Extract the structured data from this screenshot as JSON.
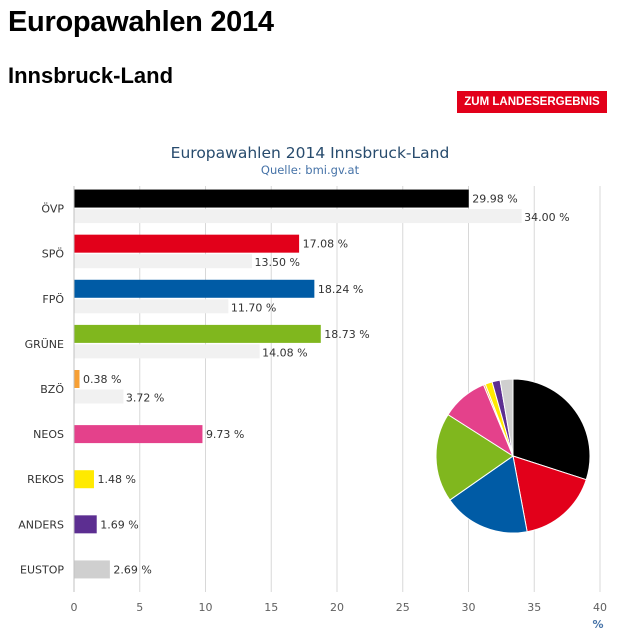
{
  "page": {
    "title": "Europawahlen 2014",
    "subtitle": "Innsbruck-Land",
    "button_label": "ZUM LANDESERGEBNIS"
  },
  "chart_data": {
    "type": "bar",
    "orientation": "horizontal",
    "title": "Europawahlen 2014 Innsbruck-Land",
    "subtitle": "Quelle: bmi.gv.at",
    "xlabel": "%",
    "xlim": [
      0,
      40
    ],
    "xticks": [
      "0",
      "5",
      "10",
      "15",
      "20",
      "25",
      "30",
      "35",
      "40"
    ],
    "grid": true,
    "value_suffix": " %",
    "categories": [
      "ÖVP",
      "SPÖ",
      "FPÖ",
      "GRÜNE",
      "BZÖ",
      "NEOS",
      "REKOS",
      "ANDERS",
      "EUSTOP"
    ],
    "series": [
      {
        "values": [
          29.98,
          17.08,
          18.24,
          18.73,
          0.38,
          9.73,
          1.48,
          1.69,
          2.69
        ],
        "labels": [
          "29.98 %",
          "17.08 %",
          "18.24 %",
          "18.73 %",
          "0.38 %",
          "9.73 %",
          "1.48 %",
          "1.69 %",
          "2.69 %"
        ],
        "colors": [
          "#000000",
          "#e2001a",
          "#005ba5",
          "#80b71e",
          "#f7a035",
          "#e4418b",
          "#ffea00",
          "#5c2e91",
          "#cfcfcf"
        ]
      },
      {
        "values": [
          34.0,
          13.5,
          11.7,
          14.08,
          3.72,
          null,
          null,
          null,
          null
        ],
        "labels": [
          "34.00 %",
          "13.50 %",
          "11.70 %",
          "14.08 %",
          "3.72 %",
          null,
          null,
          null,
          null
        ],
        "color": "#f1f1f1"
      }
    ],
    "inset_pie": {
      "type": "pie",
      "values": [
        29.98,
        17.08,
        18.24,
        18.73,
        9.73,
        0.38,
        1.48,
        1.69,
        2.69
      ],
      "colors": [
        "#000000",
        "#e2001a",
        "#005ba5",
        "#80b71e",
        "#e4418b",
        "#f7a035",
        "#ffea00",
        "#5c2e91",
        "#cfcfcf"
      ]
    }
  }
}
